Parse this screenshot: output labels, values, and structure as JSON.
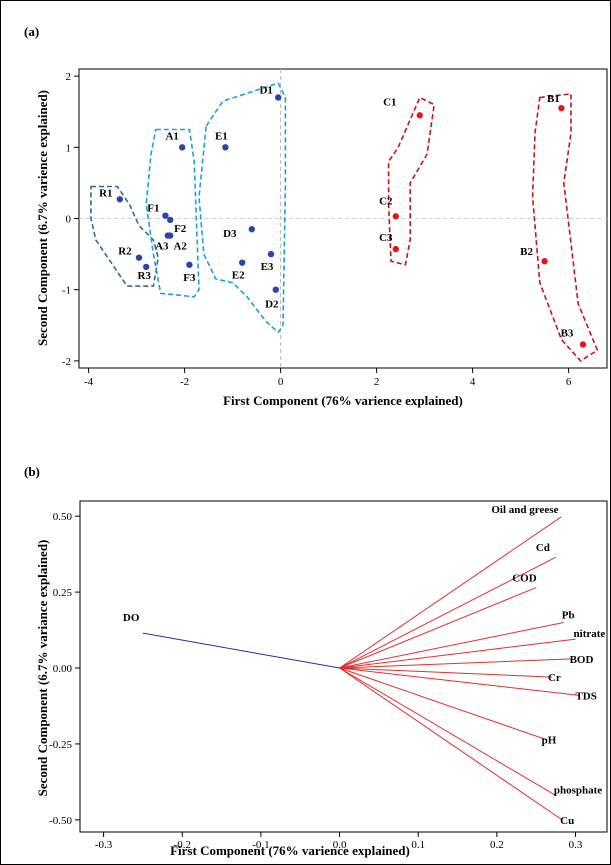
{
  "panels": [
    {
      "label": "(a)",
      "xlabel": "First Component (76% varience explained)",
      "ylabel": "Second Component (6.7% varience explained)"
    },
    {
      "label": "(b)",
      "xlabel": "First Component (76%  varience explained)",
      "ylabel": "Second Component (6.7% variance explained)"
    }
  ],
  "chart_data": [
    {
      "type": "scatter",
      "xlim": [
        -4.2,
        6.8
      ],
      "ylim": [
        -2.1,
        2.1
      ],
      "xticks": [
        -4,
        -2,
        0,
        2,
        4,
        6
      ],
      "yticks": [
        -2,
        -1,
        0,
        1,
        2
      ],
      "reference_lines": {
        "x": 0,
        "y": 0
      },
      "points": [
        {
          "label": "R1",
          "x": -3.35,
          "y": 0.27,
          "color": "#2b44a8"
        },
        {
          "label": "R2",
          "x": -2.95,
          "y": -0.55,
          "color": "#2b44a8"
        },
        {
          "label": "R3",
          "x": -2.8,
          "y": -0.68,
          "color": "#2b44a8"
        },
        {
          "label": "A1",
          "x": -2.05,
          "y": 1.0,
          "color": "#2b44a8"
        },
        {
          "label": "F1",
          "x": -2.4,
          "y": 0.04,
          "color": "#2b44a8"
        },
        {
          "label": "F2",
          "x": -2.3,
          "y": -0.02,
          "color": "#2b44a8"
        },
        {
          "label": "A3",
          "x": -2.35,
          "y": -0.24,
          "color": "#2b44a8"
        },
        {
          "label": "A2",
          "x": -2.3,
          "y": -0.24,
          "color": "#2b44a8"
        },
        {
          "label": "F3",
          "x": -1.9,
          "y": -0.65,
          "color": "#2b44a8"
        },
        {
          "label": "E1",
          "x": -1.15,
          "y": 1.0,
          "color": "#2b44a8"
        },
        {
          "label": "D1",
          "x": -0.05,
          "y": 1.7,
          "color": "#2b44a8"
        },
        {
          "label": "D3",
          "x": -0.6,
          "y": -0.15,
          "color": "#2b44a8"
        },
        {
          "label": "E2",
          "x": -0.8,
          "y": -0.62,
          "color": "#2b44a8"
        },
        {
          "label": "E3",
          "x": -0.2,
          "y": -0.5,
          "color": "#2b44a8"
        },
        {
          "label": "D2",
          "x": -0.1,
          "y": -1.0,
          "color": "#2b44a8"
        },
        {
          "label": "C1",
          "x": 2.9,
          "y": 1.45,
          "color": "#e01818"
        },
        {
          "label": "C2",
          "x": 2.4,
          "y": 0.03,
          "color": "#e01818"
        },
        {
          "label": "C3",
          "x": 2.4,
          "y": -0.43,
          "color": "#e01818"
        },
        {
          "label": "B1",
          "x": 5.85,
          "y": 1.55,
          "color": "#e01818"
        },
        {
          "label": "B2",
          "x": 5.5,
          "y": -0.6,
          "color": "#e01818"
        },
        {
          "label": "B3",
          "x": 6.3,
          "y": -1.77,
          "color": "#e01818"
        }
      ],
      "groups": [
        {
          "members": [
            "R1",
            "R2",
            "R3"
          ],
          "color": "#2e6b9a",
          "outline": [
            [
              -3.95,
              0.45
            ],
            [
              -3.4,
              0.45
            ],
            [
              -3.15,
              0.2
            ],
            [
              -2.95,
              -0.1
            ],
            [
              -2.65,
              -0.3
            ],
            [
              -2.55,
              -0.55
            ],
            [
              -2.65,
              -0.95
            ],
            [
              -3.2,
              -0.95
            ],
            [
              -3.55,
              -0.6
            ],
            [
              -3.85,
              -0.3
            ],
            [
              -3.95,
              0.0
            ]
          ]
        },
        {
          "members": [
            "A1",
            "F1",
            "F2",
            "A2",
            "A3",
            "F3"
          ],
          "color": "#1aa0d8",
          "outline": [
            [
              -2.6,
              1.25
            ],
            [
              -1.9,
              1.25
            ],
            [
              -1.8,
              0.8
            ],
            [
              -1.75,
              -0.1
            ],
            [
              -1.7,
              -1.0
            ],
            [
              -1.8,
              -1.1
            ],
            [
              -2.5,
              -1.05
            ],
            [
              -2.65,
              -0.5
            ],
            [
              -2.8,
              0.2
            ],
            [
              -2.7,
              0.9
            ]
          ]
        },
        {
          "members": [
            "E1",
            "D1",
            "D2",
            "D3",
            "E2",
            "E3"
          ],
          "color": "#1aa0d8",
          "outline": [
            [
              -1.55,
              1.3
            ],
            [
              -1.2,
              1.65
            ],
            [
              -0.6,
              1.78
            ],
            [
              -0.05,
              1.9
            ],
            [
              0.1,
              1.7
            ],
            [
              0.1,
              0.5
            ],
            [
              0.05,
              -1.5
            ],
            [
              -0.05,
              -1.6
            ],
            [
              -0.3,
              -1.45
            ],
            [
              -0.7,
              -1.1
            ],
            [
              -1.0,
              -0.9
            ],
            [
              -1.35,
              -0.85
            ],
            [
              -1.6,
              -0.5
            ],
            [
              -1.7,
              0.3
            ]
          ]
        },
        {
          "members": [
            "C1",
            "C2",
            "C3"
          ],
          "color": "#c01616",
          "outline": [
            [
              2.45,
              1.0
            ],
            [
              2.9,
              1.7
            ],
            [
              3.2,
              1.6
            ],
            [
              3.05,
              0.9
            ],
            [
              2.7,
              0.5
            ],
            [
              2.7,
              -0.3
            ],
            [
              2.6,
              -0.65
            ],
            [
              2.3,
              -0.6
            ],
            [
              2.25,
              0.2
            ],
            [
              2.25,
              0.8
            ]
          ]
        },
        {
          "members": [
            "B1",
            "B2",
            "B3"
          ],
          "color": "#c01616",
          "outline": [
            [
              5.4,
              1.7
            ],
            [
              6.05,
              1.75
            ],
            [
              6.05,
              1.2
            ],
            [
              5.9,
              0.5
            ],
            [
              6.2,
              -1.2
            ],
            [
              6.6,
              -1.85
            ],
            [
              6.25,
              -2.0
            ],
            [
              5.85,
              -1.7
            ],
            [
              5.4,
              -0.9
            ],
            [
              5.25,
              0.3
            ],
            [
              5.3,
              1.2
            ]
          ]
        }
      ]
    },
    {
      "type": "line",
      "subtype": "biplot-loadings",
      "xlim": [
        -0.33,
        0.34
      ],
      "ylim": [
        -0.54,
        0.55
      ],
      "xticks": [
        -0.3,
        -0.2,
        -0.1,
        0.0,
        0.1,
        0.2,
        0.3
      ],
      "yticks": [
        -0.5,
        -0.25,
        0.0,
        0.25,
        0.5
      ],
      "vectors": [
        {
          "label": "DO",
          "x": -0.25,
          "y": 0.115,
          "color": "#2030a0"
        },
        {
          "label": "Oil and greese",
          "x": 0.282,
          "y": 0.498,
          "color": "#e03030"
        },
        {
          "label": "Cd",
          "x": 0.275,
          "y": 0.365,
          "color": "#e03030"
        },
        {
          "label": "COD",
          "x": 0.25,
          "y": 0.265,
          "color": "#e03030"
        },
        {
          "label": "Pb",
          "x": 0.285,
          "y": 0.15,
          "color": "#e03030"
        },
        {
          "label": "nitrate",
          "x": 0.3,
          "y": 0.095,
          "color": "#e03030"
        },
        {
          "label": "BOD",
          "x": 0.295,
          "y": 0.03,
          "color": "#e03030"
        },
        {
          "label": "Cr",
          "x": 0.27,
          "y": -0.03,
          "color": "#e03030"
        },
        {
          "label": "TDS",
          "x": 0.305,
          "y": -0.09,
          "color": "#e03030"
        },
        {
          "label": "pH",
          "x": 0.262,
          "y": -0.235,
          "color": "#e03030"
        },
        {
          "label": "phosphate",
          "x": 0.275,
          "y": -0.42,
          "color": "#e03030"
        },
        {
          "label": "Cu",
          "x": 0.283,
          "y": -0.5,
          "color": "#e03030"
        }
      ]
    }
  ]
}
